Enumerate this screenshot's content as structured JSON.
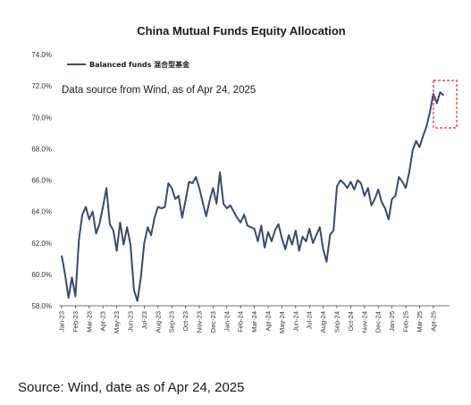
{
  "footer": "Source: Wind, date as of Apr 24, 2025",
  "chart_data": {
    "type": "line",
    "title": "China Mutual Funds Equity Allocation",
    "annotation": "Data source from Wind, as of Apr 24, 2025",
    "xlabel": "",
    "ylabel": "",
    "ylim": [
      58,
      74
    ],
    "y_ticks": [
      "58.0%",
      "60.0%",
      "62.0%",
      "64.0%",
      "66.0%",
      "68.0%",
      "70.0%",
      "72.0%",
      "74.0%"
    ],
    "x_ticks": [
      "Jan-23",
      "Feb-23",
      "Mar-23",
      "Apr-23",
      "May-23",
      "Jun-23",
      "Jul-23",
      "Aug-23",
      "Sep-23",
      "Oct-23",
      "Nov-23",
      "Dec-23",
      "Jan-24",
      "Feb-24",
      "Mar-24",
      "Apr-24",
      "May-24",
      "Jun-24",
      "Jul-24",
      "Aug-24",
      "Sep-24",
      "Oct-24",
      "Nov-24",
      "Dec-24",
      "Jan-25",
      "Feb-25",
      "Mar-25",
      "Apr-25"
    ],
    "grid": false,
    "legend_position": "top-left",
    "highlight_box": "last-weeks",
    "colors": {
      "line": "#3b4a6b",
      "highlight": "#e03030"
    },
    "series": [
      {
        "name": "Balanced funds 混合型基金",
        "x": [
          0,
          0.25,
          0.5,
          0.75,
          1,
          1.25,
          1.5,
          1.75,
          2,
          2.25,
          2.5,
          2.75,
          3,
          3.25,
          3.5,
          3.75,
          4,
          4.25,
          4.5,
          4.75,
          5,
          5.25,
          5.5,
          5.75,
          6,
          6.25,
          6.5,
          6.75,
          7,
          7.25,
          7.5,
          7.75,
          8,
          8.25,
          8.5,
          8.75,
          9,
          9.25,
          9.5,
          9.75,
          10,
          10.25,
          10.5,
          10.75,
          11,
          11.25,
          11.5,
          11.75,
          12,
          12.25,
          12.5,
          12.75,
          13,
          13.25,
          13.5,
          13.75,
          14,
          14.25,
          14.5,
          14.75,
          15,
          15.25,
          15.5,
          15.75,
          16,
          16.25,
          16.5,
          16.75,
          17,
          17.25,
          17.5,
          17.75,
          18,
          18.25,
          18.5,
          18.75,
          19,
          19.25,
          19.5,
          19.75,
          20,
          20.25,
          20.5,
          20.75,
          21,
          21.25,
          21.5,
          21.75,
          22,
          22.25,
          22.5,
          22.75,
          23,
          23.25,
          23.5,
          23.75,
          24,
          24.25,
          24.5,
          24.75,
          25,
          25.25,
          25.5,
          25.75,
          26,
          26.25,
          26.5,
          26.75,
          27,
          27.25,
          27.5,
          27.75
        ],
        "values": [
          61.2,
          60.0,
          58.5,
          59.8,
          58.6,
          62.2,
          63.8,
          64.3,
          63.5,
          64.0,
          62.6,
          63.2,
          64.3,
          65.5,
          63.2,
          62.8,
          61.5,
          63.3,
          61.9,
          63.0,
          61.9,
          59.0,
          58.3,
          59.8,
          62.0,
          63.0,
          62.5,
          63.6,
          64.3,
          64.2,
          64.3,
          65.8,
          65.5,
          64.8,
          65.0,
          63.6,
          64.7,
          65.9,
          65.8,
          66.2,
          65.5,
          64.6,
          63.7,
          64.7,
          65.5,
          64.5,
          66.5,
          64.5,
          64.2,
          64.4,
          64.0,
          63.6,
          63.3,
          63.8,
          63.1,
          63.0,
          62.9,
          62.1,
          63.1,
          61.7,
          62.7,
          62.1,
          62.8,
          63.2,
          62.3,
          61.6,
          62.5,
          61.9,
          62.8,
          61.5,
          62.4,
          62.1,
          62.9,
          62.0,
          62.5,
          63.0,
          61.6,
          60.8,
          62.5,
          62.8,
          65.6,
          66.0,
          65.8,
          65.5,
          65.9,
          65.4,
          66.0,
          65.8,
          65.0,
          65.5,
          64.4,
          64.8,
          65.4,
          64.6,
          64.2,
          63.5,
          64.8,
          65.0,
          66.2,
          65.9,
          65.5,
          66.5,
          67.9,
          68.5,
          68.1,
          68.8,
          69.4,
          70.3,
          71.5,
          70.9,
          71.6,
          71.4
        ]
      }
    ]
  }
}
